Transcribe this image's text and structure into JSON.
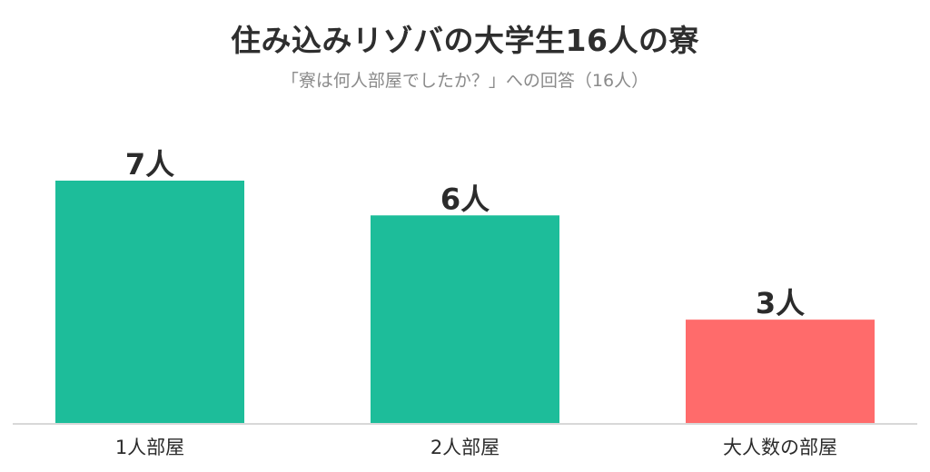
{
  "title": "住み込みリゾバの大学生16人の寮",
  "subtitle": "「寮は何人部屋でしたか？」への回答（16人）",
  "colors": {
    "primary_bar": "#1dbd9a",
    "highlight_bar": "#ff6b6b",
    "baseline": "#d8d8d8",
    "text": "#2b2b2b"
  },
  "chart_data": {
    "type": "bar",
    "categories": [
      "1人部屋",
      "2人部屋",
      "大人数の部屋"
    ],
    "values": [
      7,
      6,
      3
    ],
    "data_labels": [
      "7人",
      "6人",
      "3人"
    ],
    "bar_colors": [
      "#1dbd9a",
      "#1dbd9a",
      "#ff6b6b"
    ],
    "title": "住み込みリゾバの大学生16人の寮",
    "subtitle": "「寮は何人部屋でしたか？」への回答（16人）",
    "xlabel": "",
    "ylabel": "",
    "ylim": [
      0,
      7
    ],
    "grid": false
  }
}
